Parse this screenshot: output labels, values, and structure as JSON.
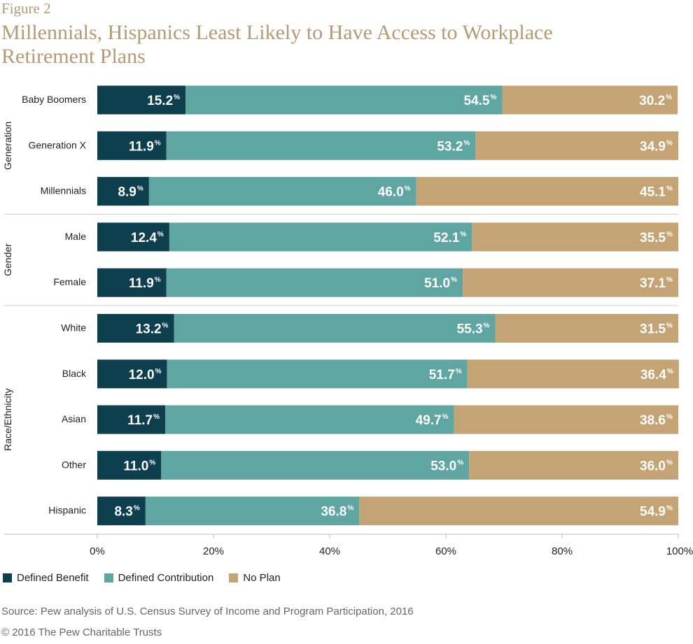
{
  "header": {
    "figure_label": "Figure 2",
    "title": "Millennials, Hispanics Least Likely to Have Access to Workplace Retirement Plans"
  },
  "chart_data": {
    "type": "bar",
    "orientation": "horizontal",
    "stacked": true,
    "groups": [
      {
        "name": "Generation",
        "categories": [
          "Baby Boomers",
          "Generation X",
          "Millennials"
        ]
      },
      {
        "name": "Gender",
        "categories": [
          "Male",
          "Female"
        ]
      },
      {
        "name": "Race/Ethnicity",
        "categories": [
          "White",
          "Black",
          "Asian",
          "Other",
          "Hispanic"
        ]
      }
    ],
    "categories": [
      "Baby Boomers",
      "Generation X",
      "Millennials",
      "Male",
      "Female",
      "White",
      "Black",
      "Asian",
      "Other",
      "Hispanic"
    ],
    "series": [
      {
        "name": "Defined Benefit",
        "color": "#0d3f4f",
        "values": [
          15.2,
          11.9,
          8.9,
          12.4,
          11.9,
          13.2,
          12.0,
          11.7,
          11.0,
          8.3
        ]
      },
      {
        "name": "Defined Contribution",
        "color": "#5fa6a2",
        "values": [
          54.5,
          53.2,
          46.0,
          52.1,
          51.0,
          55.3,
          51.7,
          49.7,
          53.0,
          36.8
        ]
      },
      {
        "name": "No Plan",
        "color": "#c4a475",
        "values": [
          30.2,
          34.9,
          45.1,
          35.5,
          37.1,
          31.5,
          36.4,
          38.6,
          36.0,
          54.9
        ]
      }
    ],
    "value_labels": [
      [
        "15.2",
        "11.9",
        "8.9",
        "12.4",
        "11.9",
        "13.2",
        "12.0",
        "11.7",
        "11.0",
        "8.3"
      ],
      [
        "54.5",
        "53.2",
        "46.0",
        "52.1",
        "51.0",
        "55.3",
        "51.7",
        "49.7",
        "53.0",
        "36.8"
      ],
      [
        "30.2",
        "34.9",
        "45.1",
        "35.5",
        "37.1",
        "31.5",
        "36.4",
        "38.6",
        "36.0",
        "54.9"
      ]
    ],
    "label_suffix": "%",
    "xlim": [
      0,
      100
    ],
    "xticks": [
      "0%",
      "20%",
      "40%",
      "60%",
      "80%",
      "100%"
    ],
    "grid": false,
    "legend": "bottom-left"
  },
  "legend": [
    {
      "label": "Defined Benefit",
      "color": "#0d3f4f"
    },
    {
      "label": "Defined Contribution",
      "color": "#5fa6a2"
    },
    {
      "label": "No Plan",
      "color": "#c4a475"
    }
  ],
  "footer": {
    "source": "Source: Pew analysis of U.S. Census Survey of Income and Program Participation, 2016",
    "copyright": "© 2016 The Pew Charitable Trusts"
  }
}
